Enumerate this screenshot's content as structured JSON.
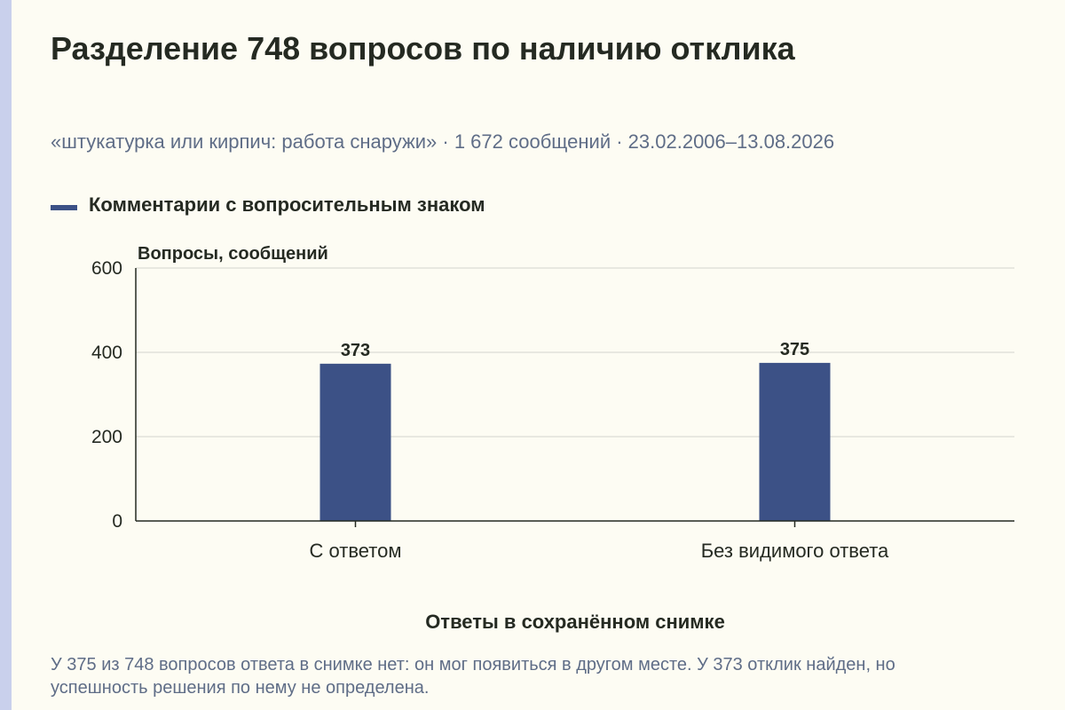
{
  "title": "Разделение 748 вопросов по наличию отклика",
  "subtitle": "«штукатурка или кирпич: работа снаружи» · 1 672 сообщений · 23.02.2006–13.08.2026",
  "footnote": "У 375 из 748 вопросов ответа в снимке нет: он мог появиться в другом месте. У 373 отклик найден, но успешность решения по нему не определена.",
  "colors": {
    "bar": "#3c5186",
    "grid": "#d4d4cc",
    "axis": "#252a22",
    "background": "#fdfcf3",
    "stripe": "#c9d0ec"
  },
  "chart_data": {
    "type": "bar",
    "categories": [
      "С ответом",
      "Без видимого ответа"
    ],
    "series": [
      {
        "name": "Комментарии с вопросительным знаком",
        "values": [
          373,
          375
        ]
      }
    ],
    "data_labels": [
      "373",
      "375"
    ],
    "ylabel": "Вопросы, сообщений",
    "xlabel": "Ответы в сохранённом снимке",
    "ylim": [
      0,
      600
    ],
    "yticks": [
      0,
      200,
      400,
      600
    ],
    "grid": true,
    "legend_position": "top-left"
  }
}
